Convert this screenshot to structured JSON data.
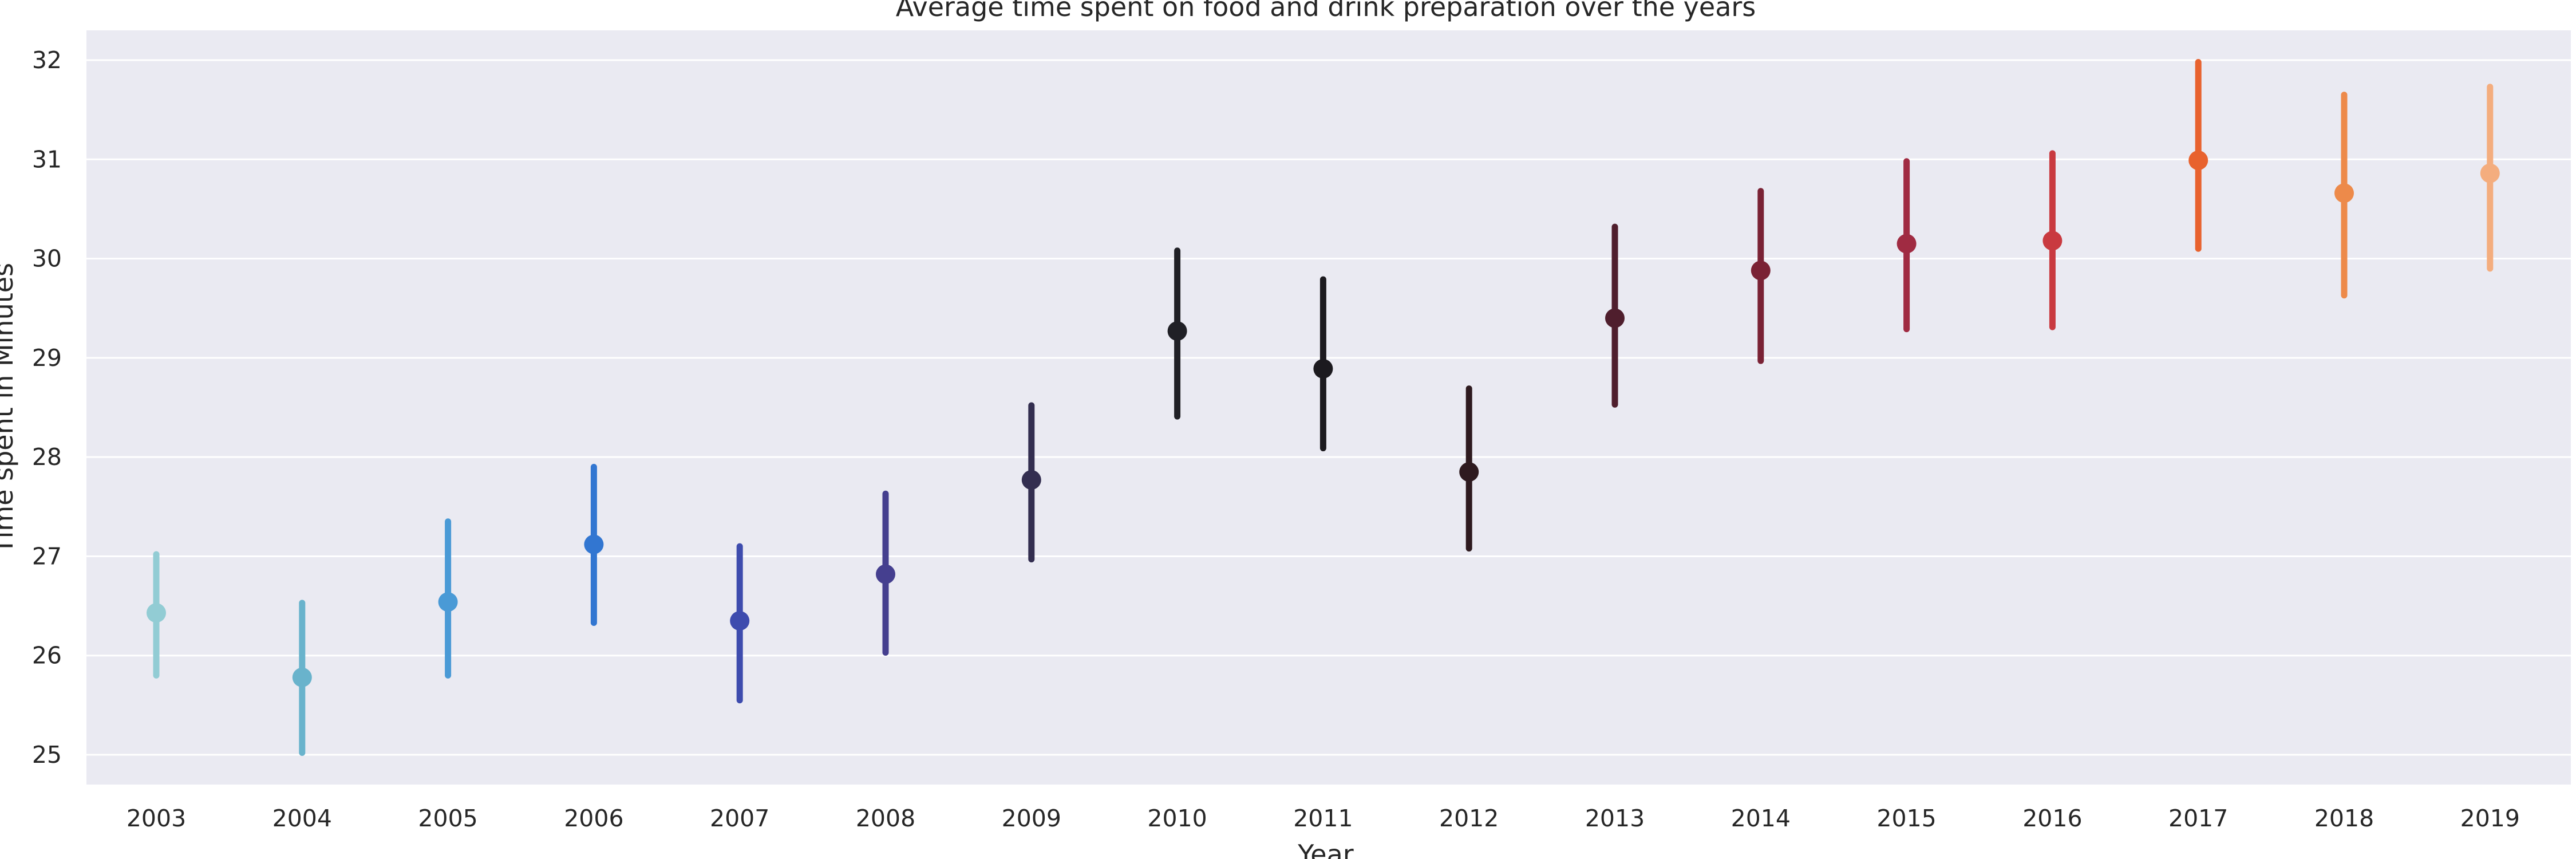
{
  "chart_data": {
    "type": "pointplot",
    "title": "Average time spent on food and drink preparation over the years",
    "xlabel": "Year",
    "ylabel": "Time spent in Minutes",
    "categories": [
      "2003",
      "2004",
      "2005",
      "2006",
      "2007",
      "2008",
      "2009",
      "2010",
      "2011",
      "2012",
      "2013",
      "2014",
      "2015",
      "2016",
      "2017",
      "2018",
      "2019"
    ],
    "values": [
      26.43,
      25.78,
      26.54,
      27.12,
      26.35,
      26.82,
      27.77,
      29.27,
      28.89,
      27.85,
      29.4,
      29.88,
      30.15,
      30.18,
      30.99,
      30.66,
      30.86
    ],
    "error_low": [
      25.8,
      25.02,
      25.8,
      26.33,
      25.55,
      26.03,
      26.97,
      28.41,
      28.09,
      27.08,
      28.53,
      28.97,
      29.29,
      29.31,
      30.1,
      29.63,
      29.9
    ],
    "error_high": [
      27.02,
      26.53,
      27.35,
      27.9,
      27.1,
      27.63,
      28.52,
      30.08,
      29.79,
      28.69,
      30.32,
      30.68,
      30.98,
      31.06,
      31.98,
      31.65,
      31.73
    ],
    "colors": [
      "#92ccd4",
      "#69b3cc",
      "#4a9ad6",
      "#3276d1",
      "#3e4cae",
      "#453f8f",
      "#332e50",
      "#202026",
      "#1c1a1f",
      "#2e1a1f",
      "#4f1e2d",
      "#7a2235",
      "#a02b42",
      "#c93a40",
      "#e8622e",
      "#ed8a4a",
      "#f4ad7e"
    ],
    "yticks": [
      25,
      26,
      27,
      28,
      29,
      30,
      31,
      32
    ],
    "ylim": [
      24.7,
      32.3
    ],
    "grid": true,
    "background": "#eaeaf2"
  }
}
